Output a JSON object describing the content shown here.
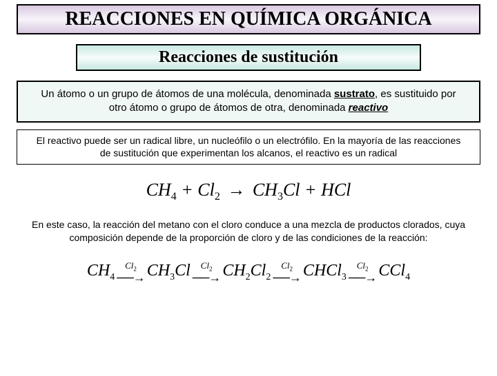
{
  "title": "REACCIONES EN QUÍMICA ORGÁNICA",
  "subtitle": "Reacciones de sustitución",
  "definition": {
    "pre": "Un átomo o un grupo de átomos de una molécula, denominada ",
    "sustrato": "sustrato",
    "mid": ", es sustituido por otro átomo o grupo de átomos de otra, denominada ",
    "reactivo": "reactivo"
  },
  "info": "El reactivo puede ser un radical libre, un nucleófilo o un electrófilo. En la mayoría de las reacciones de sustitución que experimentan los alcanos, el reactivo es un radical",
  "caption": "En este caso, la reacción del metano con el cloro conduce a una mezcla de productos clorados, cuya composición depende de la proporción de cloro y de las condiciones de la reacción:",
  "colors": {
    "title_bg_start": "#d8c8e0",
    "title_bg_mid": "#f8f4fa",
    "subtitle_bg_start": "#c8e8e2",
    "subtitle_bg_mid": "#f6fcfa",
    "def_bg": "#f0f8f6",
    "border": "#000000",
    "text": "#000000"
  },
  "equation1": {
    "terms": [
      "CH",
      "4",
      " + Cl",
      "2",
      " → CH",
      "3",
      "Cl + HCl"
    ]
  },
  "chain": {
    "reagent": "Cl",
    "reagent_sub": "2",
    "species": [
      {
        "f": "CH",
        "s": "4",
        "t": ""
      },
      {
        "f": "CH",
        "s": "3",
        "t": "Cl"
      },
      {
        "f": "CH",
        "s": "2",
        "t": "Cl",
        "s2": "2"
      },
      {
        "f": "CHCl",
        "s": "3",
        "t": ""
      },
      {
        "f": "CCl",
        "s": "4",
        "t": ""
      }
    ]
  }
}
